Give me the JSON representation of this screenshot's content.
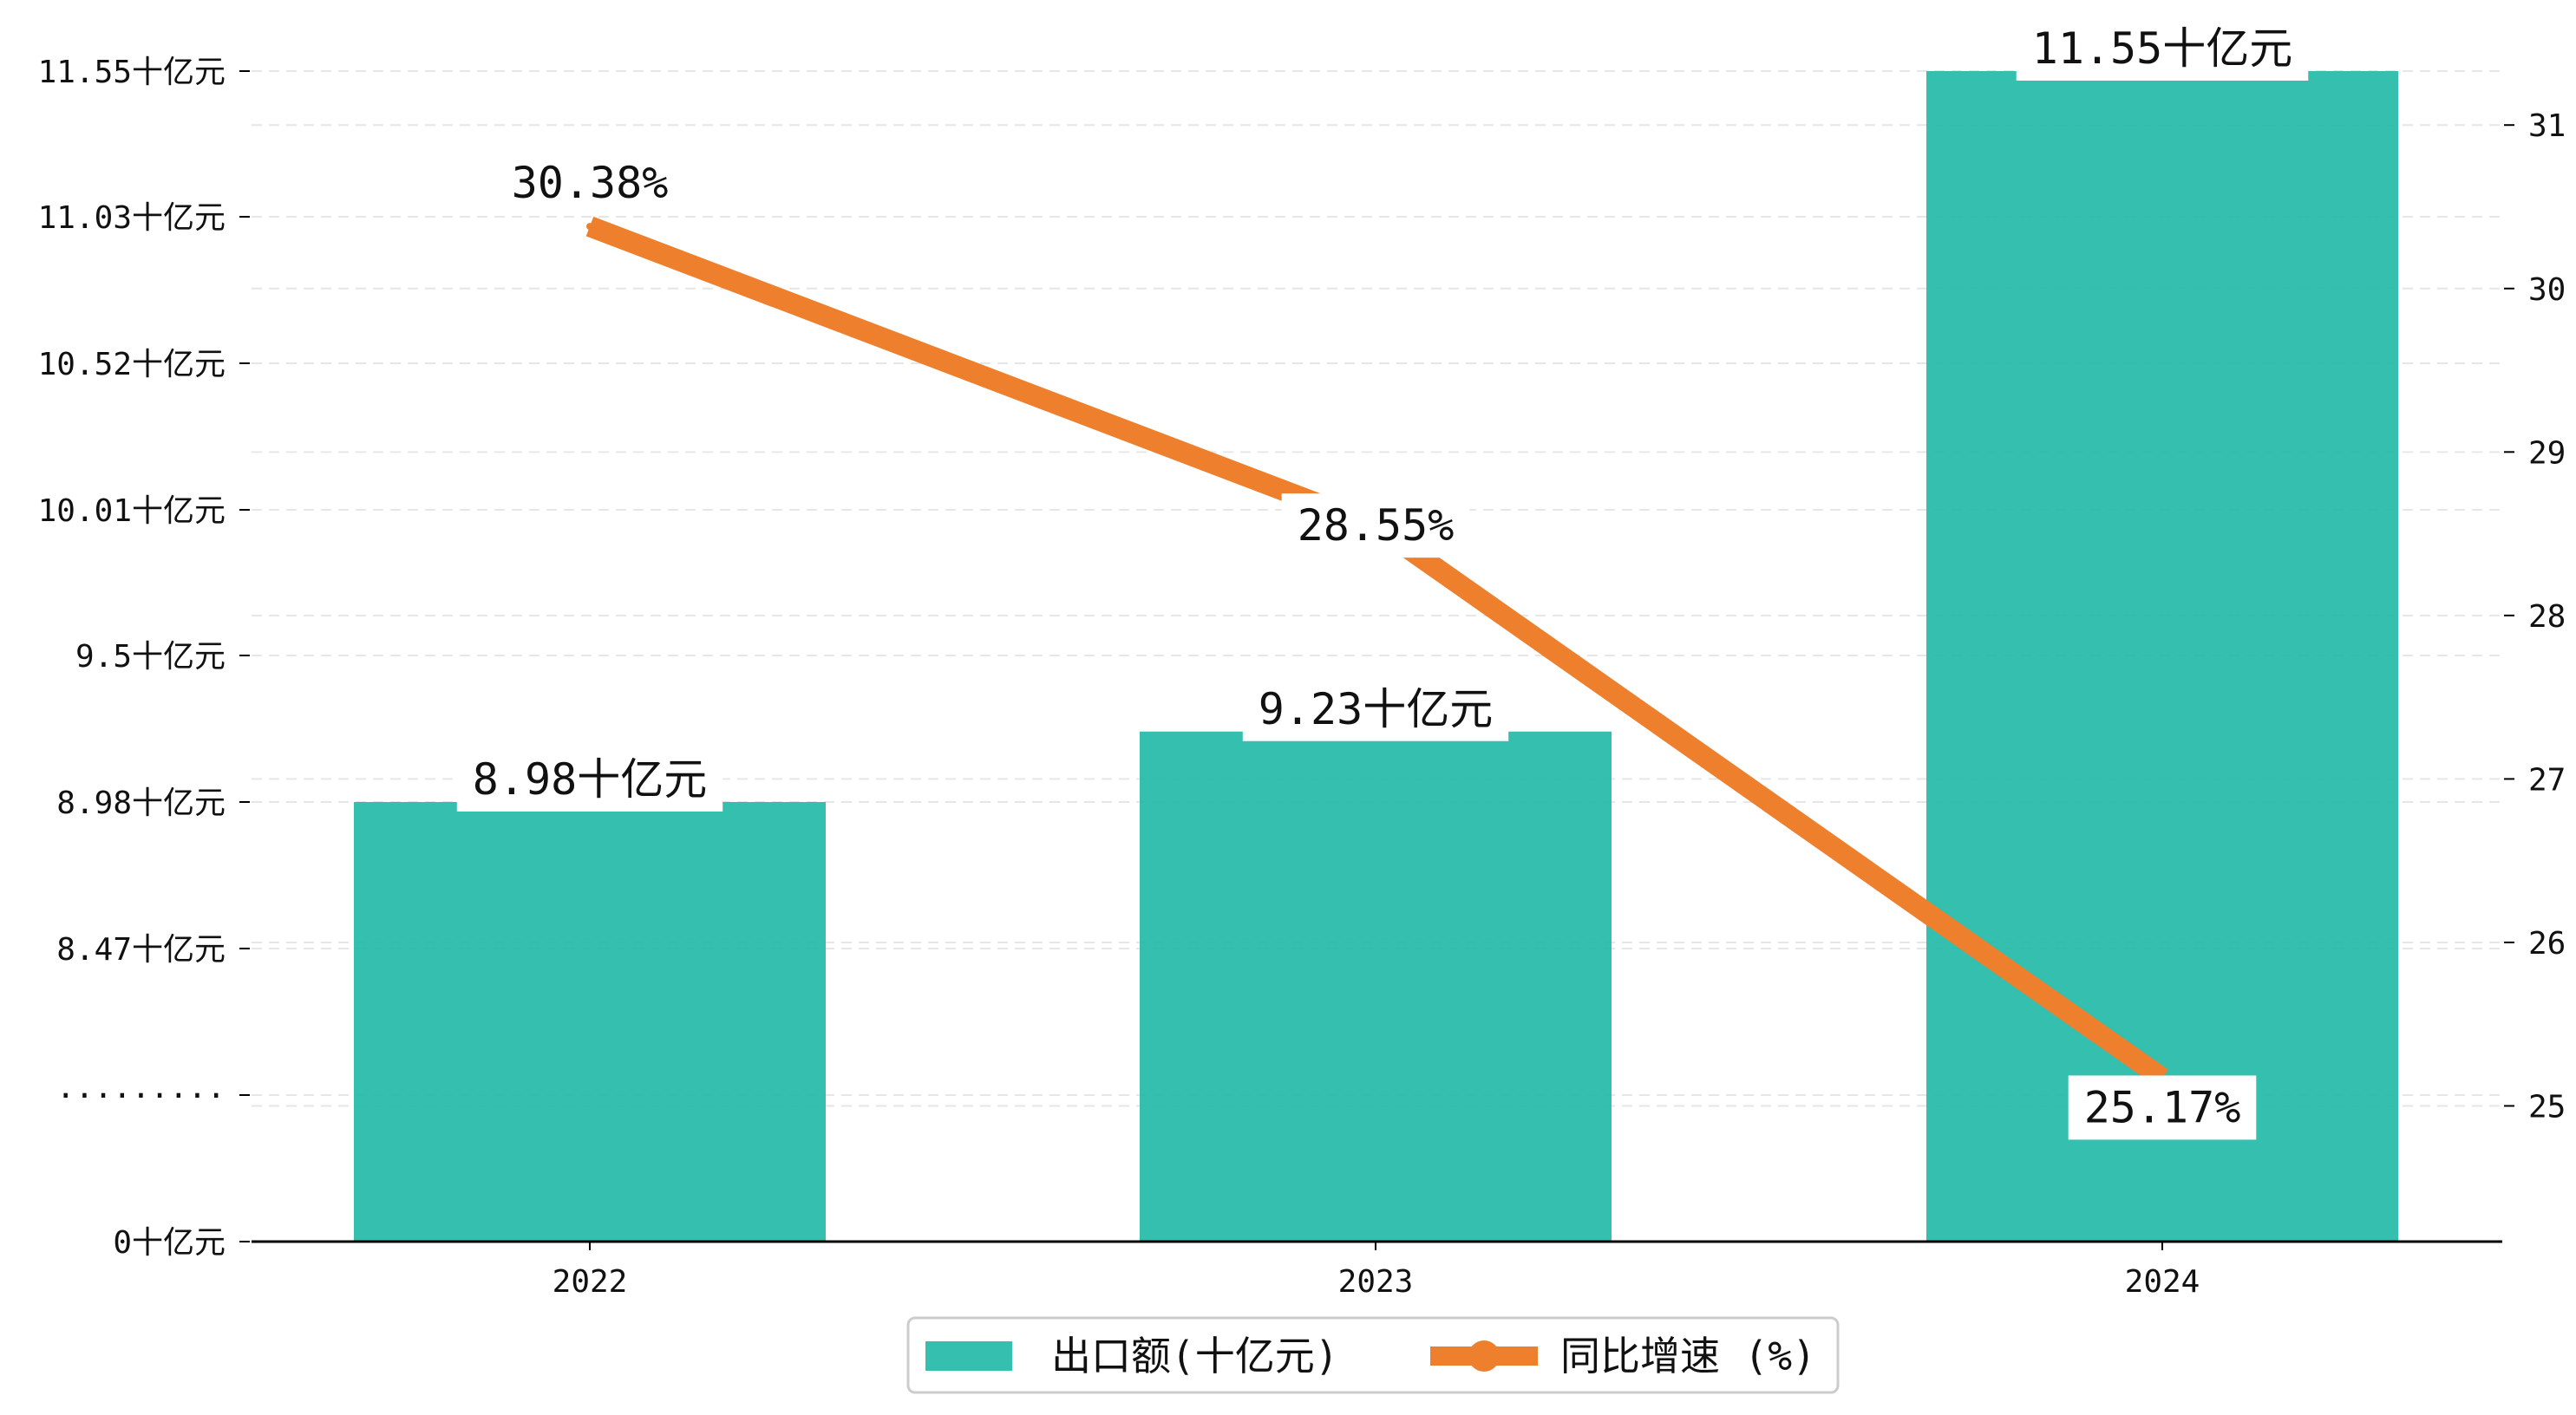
{
  "chart_data": {
    "type": "bar",
    "categories": [
      "2022",
      "2023",
      "2024"
    ],
    "series": [
      {
        "name": "出口额(十亿元)",
        "type": "bar",
        "axis": "left",
        "values": [
          8.98,
          9.23,
          11.55
        ],
        "labels": [
          "8.98十亿元",
          "9.23十亿元",
          "11.55十亿元"
        ],
        "color": "#1fb8a6"
      },
      {
        "name": "同比增速 (%)",
        "type": "line",
        "axis": "right",
        "values": [
          30.38,
          28.55,
          25.17
        ],
        "labels": [
          "30.38%",
          "28.55%",
          "25.17%"
        ],
        "color": "#ee7f2d"
      }
    ],
    "y_left": {
      "broken": true,
      "break_label": "·········",
      "ticks": [
        {
          "value": 0,
          "label": "0十亿元"
        },
        {
          "value": 8.47,
          "label": "8.47十亿元"
        },
        {
          "value": 8.98,
          "label": "8.98十亿元"
        },
        {
          "value": 9.5,
          "label": "9.5十亿元"
        },
        {
          "value": 10.01,
          "label": "10.01十亿元"
        },
        {
          "value": 10.52,
          "label": "10.52十亿元"
        },
        {
          "value": 11.03,
          "label": "11.03十亿元"
        },
        {
          "value": 11.55,
          "label": "11.55十亿元"
        }
      ]
    },
    "y_right": {
      "ylim": [
        24.17,
        31.33
      ],
      "ticks": [
        25,
        26,
        27,
        28,
        29,
        30,
        31
      ]
    },
    "grid": "horizontal dashed",
    "legend_position": "bottom-center",
    "xlabel": "",
    "ylabel": "",
    "title": ""
  }
}
